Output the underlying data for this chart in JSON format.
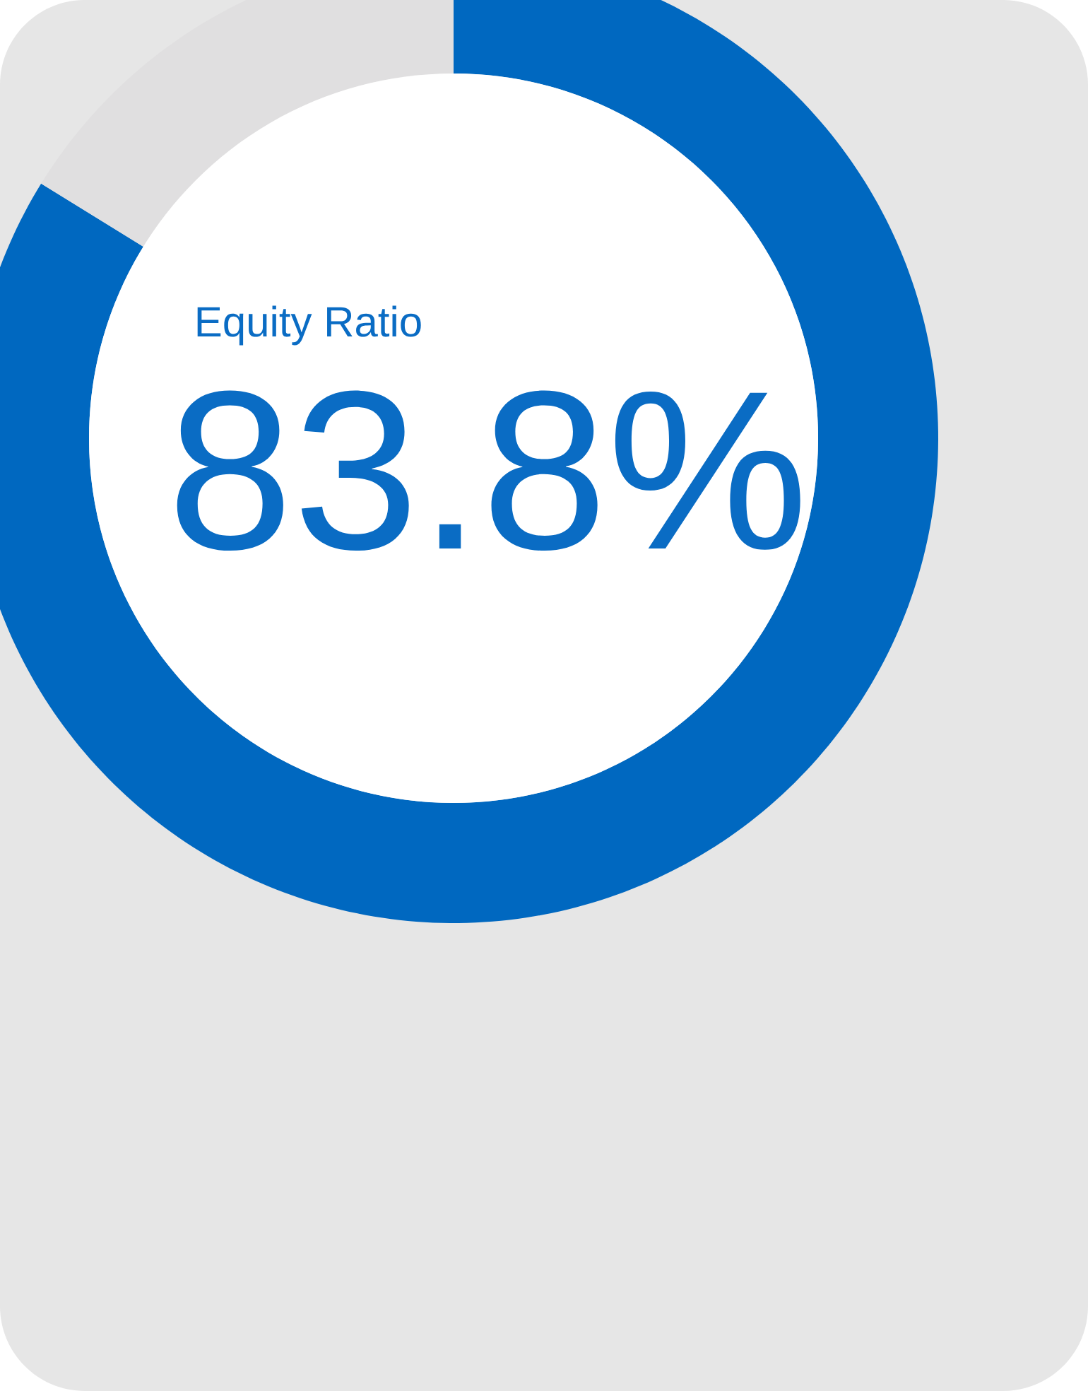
{
  "chart_data": {
    "type": "donut",
    "title": "Equity Ratio",
    "categories": [
      null,
      null
    ],
    "values": [
      83.8,
      16.2
    ],
    "colors": [
      "#0068c0",
      "#e0dfe0"
    ],
    "value_labels": [
      "83.8%",
      null
    ]
  }
}
